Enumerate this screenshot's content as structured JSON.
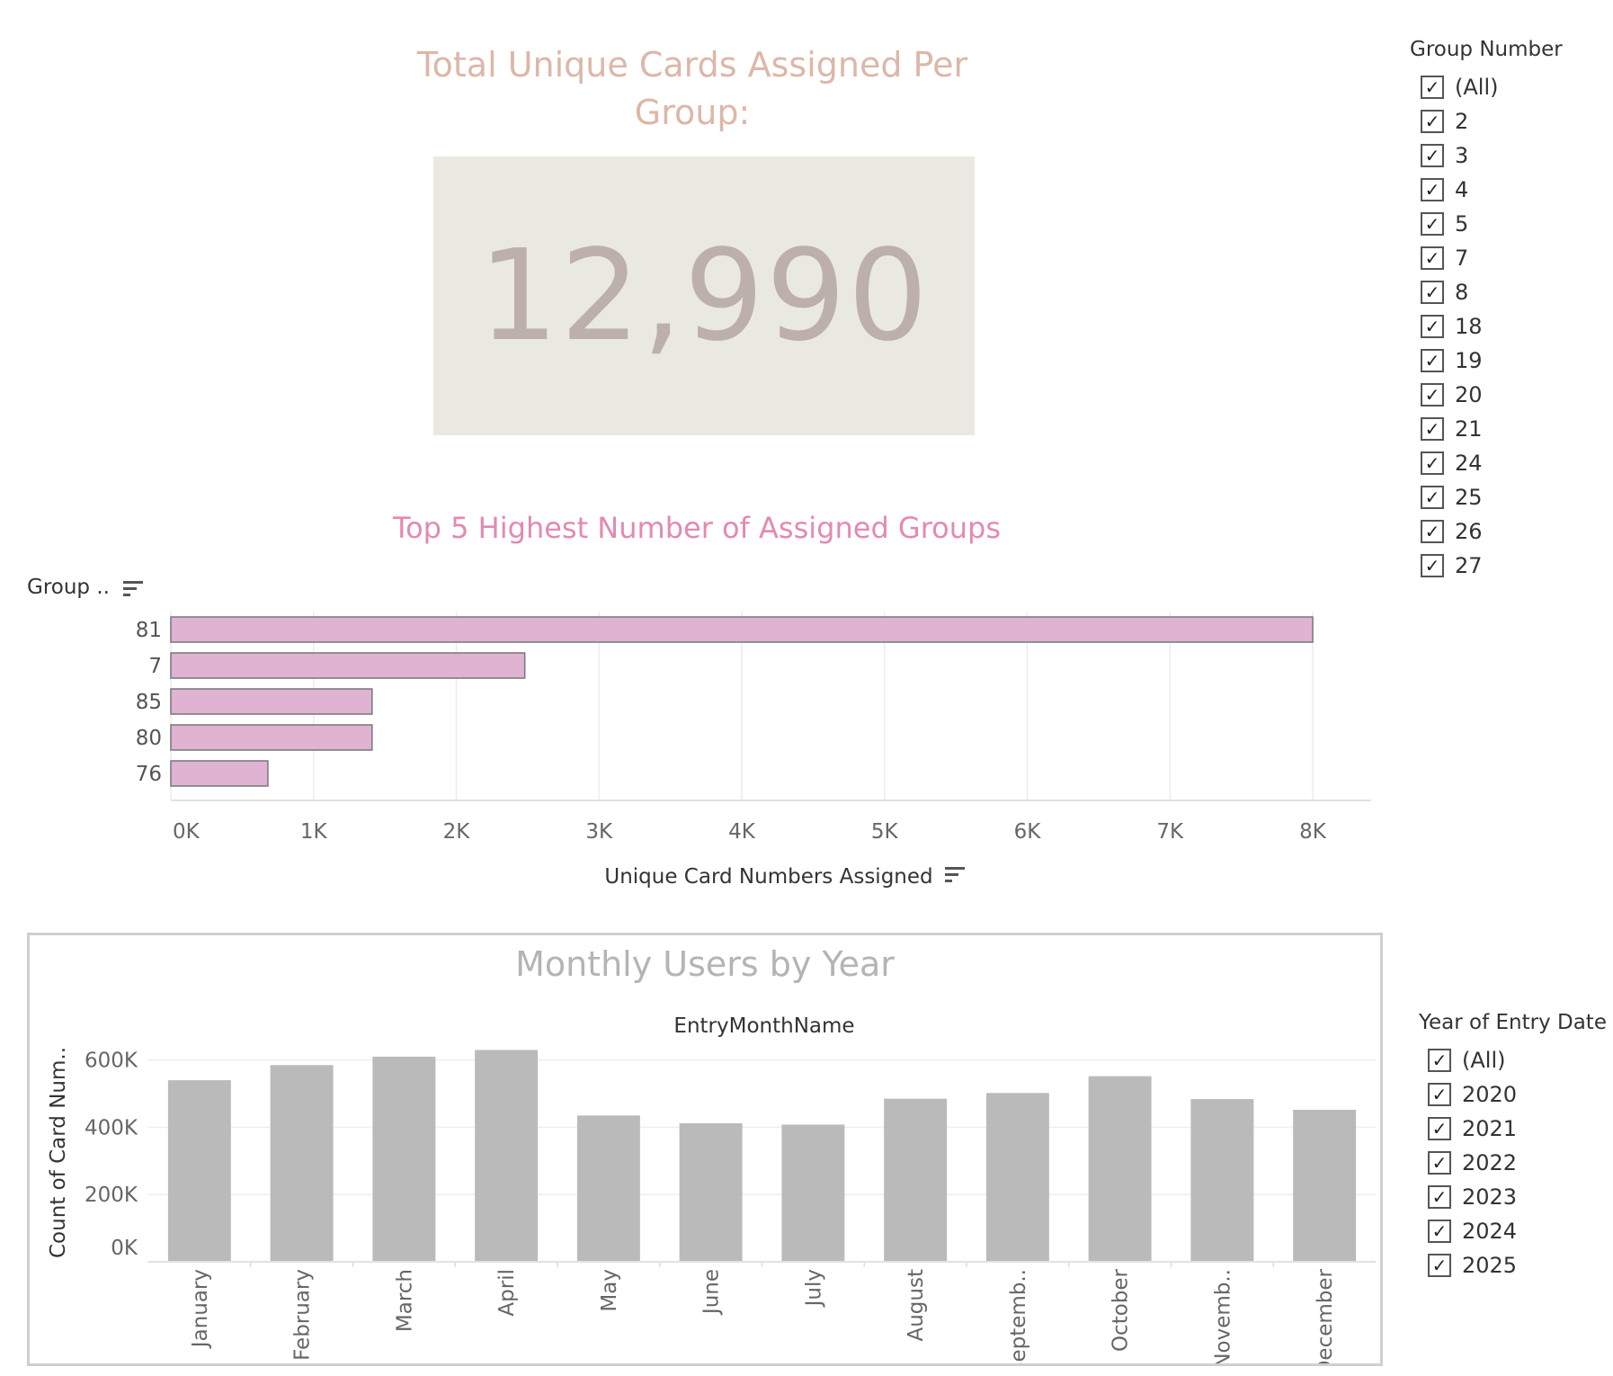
{
  "kpi": {
    "title_line1": "Total Unique Cards Assigned Per",
    "title_line2": "Group:",
    "value": "12,990"
  },
  "group_filter": {
    "title": "Group Number",
    "items": [
      "(All)",
      "2",
      "3",
      "4",
      "5",
      "7",
      "8",
      "18",
      "19",
      "20",
      "21",
      "24",
      "25",
      "26",
      "27"
    ]
  },
  "year_filter": {
    "title": "Year of Entry Date",
    "items": [
      "(All)",
      "2020",
      "2021",
      "2022",
      "2023",
      "2024",
      "2025"
    ]
  },
  "bar_header": "Group ..",
  "monthly_header": "EntryMonthName",
  "chart_data": [
    {
      "type": "bar",
      "orientation": "horizontal",
      "title": "Top 5 Highest Number of Assigned Groups",
      "categories": [
        "81",
        "7",
        "85",
        "80",
        "76"
      ],
      "values": [
        8000,
        2480,
        1410,
        1410,
        680
      ],
      "xlabel": "Unique Card Numbers Assigned",
      "ylabel": "Group ..",
      "xlim": [
        0,
        8000
      ],
      "xticks": [
        "0K",
        "1K",
        "2K",
        "3K",
        "4K",
        "5K",
        "6K",
        "7K",
        "8K"
      ],
      "bar_color": "#dfb3d1",
      "grid": true
    },
    {
      "type": "bar",
      "title": "Monthly Users by Year",
      "categories": [
        "January",
        "February",
        "March",
        "April",
        "May",
        "June",
        "July",
        "August",
        "Septemb..",
        "October",
        "Novemb..",
        "December"
      ],
      "values": [
        540000,
        585000,
        610000,
        630000,
        435000,
        412000,
        408000,
        485000,
        502000,
        552000,
        484000,
        452000
      ],
      "xlabel": "EntryMonthName",
      "ylabel": "Count of Card Num..",
      "ylim": [
        0,
        650000
      ],
      "yticks": [
        "0K",
        "200K",
        "400K",
        "600K"
      ],
      "bar_color": "#bababa",
      "grid": true
    }
  ]
}
